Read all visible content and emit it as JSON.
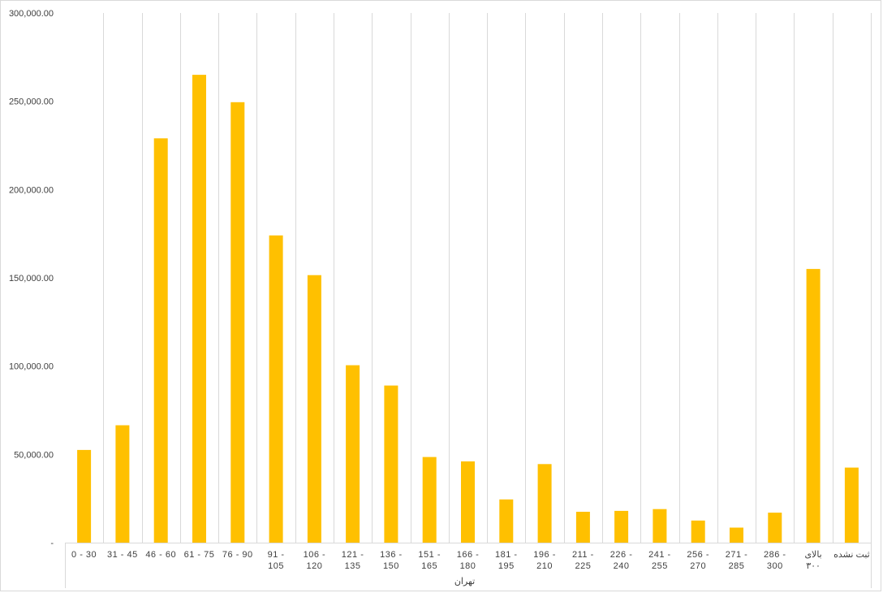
{
  "chart_data": {
    "type": "bar",
    "categories": [
      [
        "0 - 30"
      ],
      [
        "31 - 45"
      ],
      [
        "46 - 60"
      ],
      [
        "61 - 75"
      ],
      [
        "76 - 90"
      ],
      [
        "91 -",
        "105"
      ],
      [
        "106 -",
        "120"
      ],
      [
        "121 -",
        "135"
      ],
      [
        "136 -",
        "150"
      ],
      [
        "151 -",
        "165"
      ],
      [
        "166 -",
        "180"
      ],
      [
        "181 -",
        "195"
      ],
      [
        "196 -",
        "210"
      ],
      [
        "211 -",
        "225"
      ],
      [
        "226 -",
        "240"
      ],
      [
        "241 -",
        "255"
      ],
      [
        "256 -",
        "270"
      ],
      [
        "271 -",
        "285"
      ],
      [
        "286 -",
        "300"
      ],
      [
        "بالای",
        "۳۰۰"
      ],
      [
        "ثبت نشده"
      ]
    ],
    "values": [
      52500,
      66500,
      229000,
      265000,
      249500,
      174000,
      151500,
      100500,
      89000,
      48500,
      46000,
      24500,
      44500,
      17500,
      18000,
      19000,
      12500,
      8500,
      17000,
      155000,
      42500
    ],
    "group_label": "تهران",
    "ylim": [
      0,
      300000
    ],
    "yticks": [
      0,
      50000,
      100000,
      150000,
      200000,
      250000,
      300000
    ],
    "ytick_labels": [
      "-",
      "50,000.00",
      "100,000.00",
      "150,000.00",
      "200,000.00",
      "250,000.00",
      "300,000.00"
    ],
    "bar_color": "#FFC000",
    "grid": true,
    "legend": "none"
  }
}
